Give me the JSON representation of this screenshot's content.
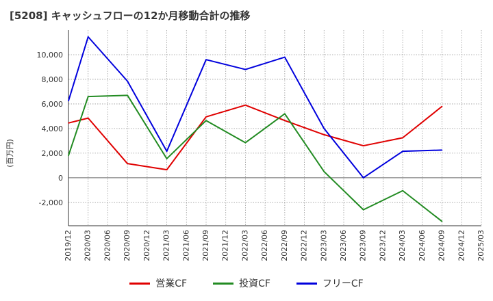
{
  "chart_data": {
    "type": "line",
    "title": "[5208]  キャッシュフローの12か月移動合計の推移",
    "xlabel": "",
    "ylabel": "(百万円)",
    "ylim": [
      -3900,
      12000
    ],
    "yticks": [
      -2000,
      0,
      2000,
      4000,
      6000,
      8000,
      10000
    ],
    "ytick_labels": [
      "-2,000",
      "0",
      "2,000",
      "4,000",
      "6,000",
      "8,000",
      "10,000"
    ],
    "categories": [
      "2019/12",
      "2020/03",
      "2020/06",
      "2020/09",
      "2020/12",
      "2021/03",
      "2021/06",
      "2021/09",
      "2021/12",
      "2022/03",
      "2022/06",
      "2022/09",
      "2022/12",
      "2023/03",
      "2023/06",
      "2023/09",
      "2023/12",
      "2024/03",
      "2024/06",
      "2024/09",
      "2024/12",
      "2025/03"
    ],
    "grid": true,
    "legend_position": "bottom",
    "series": [
      {
        "name": "営業CF",
        "color": "#e00000",
        "values": [
          4450,
          4850,
          null,
          1150,
          null,
          650,
          null,
          4950,
          null,
          5900,
          null,
          4650,
          null,
          3500,
          null,
          2600,
          null,
          3250,
          null,
          5800,
          null,
          null
        ]
      },
      {
        "name": "投資CF",
        "color": "#228b22",
        "values": [
          1800,
          6600,
          null,
          6700,
          null,
          1550,
          null,
          4650,
          null,
          2850,
          null,
          5200,
          null,
          500,
          null,
          -2600,
          null,
          -1050,
          null,
          -3550,
          null,
          null
        ]
      },
      {
        "name": "フリーCF",
        "color": "#0000dd",
        "values": [
          6250,
          11450,
          null,
          7850,
          null,
          2150,
          null,
          9600,
          null,
          8800,
          null,
          9800,
          null,
          4000,
          null,
          0,
          null,
          2150,
          null,
          2250,
          null,
          null
        ]
      }
    ]
  }
}
